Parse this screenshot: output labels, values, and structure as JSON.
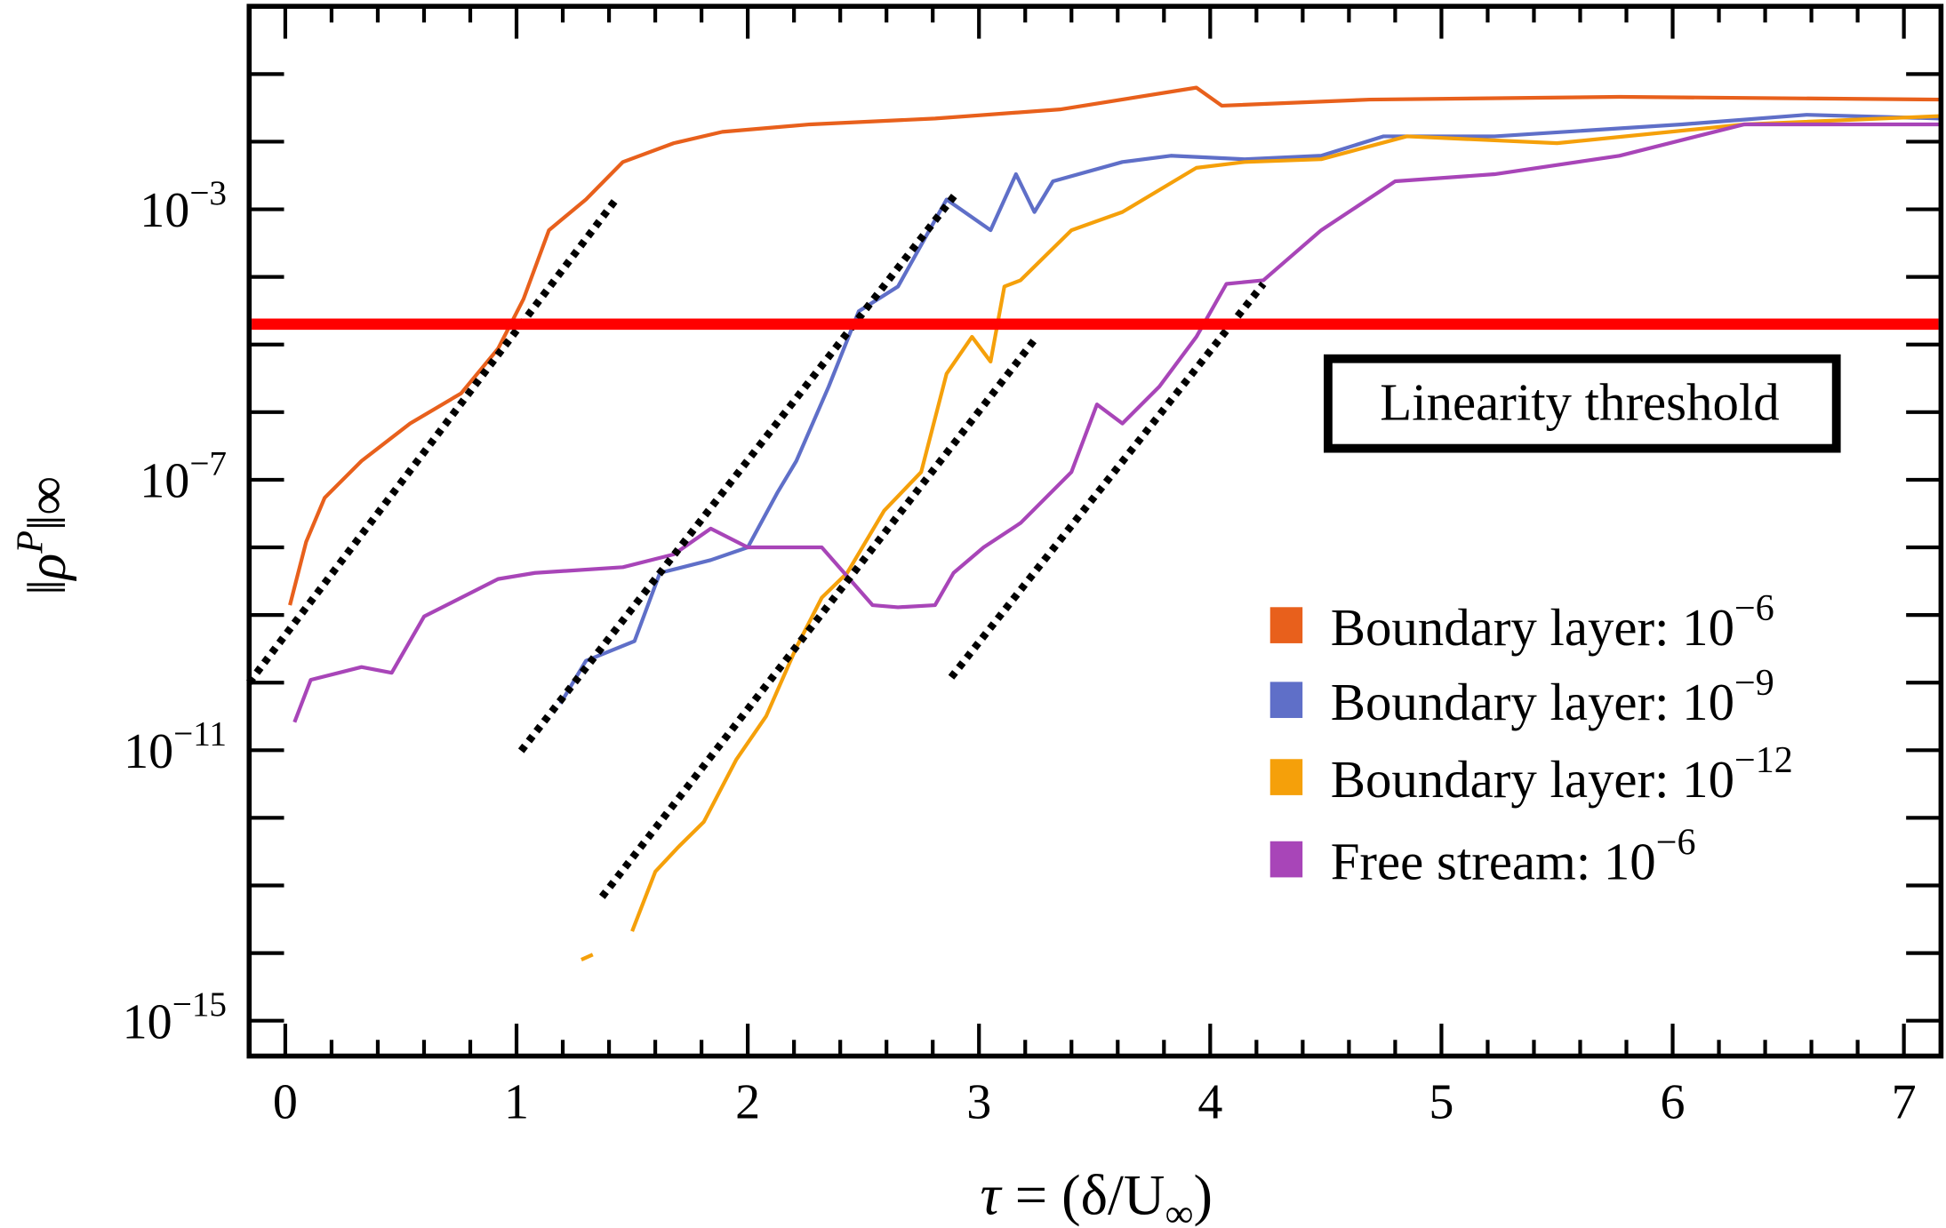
{
  "chart_data": {
    "type": "line",
    "xlabel": "τ = (δ/U∞)",
    "ylabel": "‖ρP‖∞",
    "ylabel_parts": {
      "pre": "‖ρ",
      "sup": "P",
      "post": "‖∞"
    },
    "xlabel_parts": {
      "tau": "τ",
      "rest": " = (δ/U",
      "sub": "∞",
      "close": ")"
    },
    "xlim": [
      -0.156,
      7.16
    ],
    "ylim": [
      3e-16,
      1
    ],
    "yscale": "log",
    "grid": false,
    "legend_position": "right",
    "x_ticks": [
      "0",
      "1",
      "2",
      "3",
      "4",
      "5",
      "6",
      "7"
    ],
    "y_ticks": [
      {
        "base": "10",
        "exp": "−3",
        "value": 0.001
      },
      {
        "base": "10",
        "exp": "−7",
        "value": 1e-07
      },
      {
        "base": "10",
        "exp": "−11",
        "value": 1e-11
      },
      {
        "base": "10",
        "exp": "−15",
        "value": 1e-15
      }
    ],
    "threshold": {
      "value": 2e-05,
      "label": "Linearity threshold",
      "color": "#ff0000"
    },
    "series": [
      {
        "name": "Boundary layer: 10−6",
        "label_base": "Boundary layer: 10",
        "label_exp": "−6",
        "color": "#e8601c",
        "points": [
          [
            0.02,
            1.4e-09
          ],
          [
            0.09,
            1.2e-08
          ],
          [
            0.17,
            5.4e-08
          ],
          [
            0.33,
            1.9e-07
          ],
          [
            0.54,
            6.8e-07
          ],
          [
            0.76,
            1.9e-06
          ],
          [
            0.92,
            8.7e-06
          ],
          [
            1.03,
            4.7e-05
          ],
          [
            1.14,
            0.00049
          ],
          [
            1.3,
            0.0014
          ],
          [
            1.46,
            0.005
          ],
          [
            1.68,
            0.0095
          ],
          [
            1.89,
            0.014
          ],
          [
            2.27,
            0.018
          ],
          [
            2.81,
            0.022
          ],
          [
            3.35,
            0.03
          ],
          [
            3.94,
            0.063
          ],
          [
            4.05,
            0.034
          ],
          [
            4.69,
            0.042
          ],
          [
            5.77,
            0.046
          ],
          [
            7.16,
            0.042
          ]
        ]
      },
      {
        "name": "Boundary layer: 10−9",
        "label_base": "Boundary layer: 10",
        "label_exp": "−9",
        "color": "#5f6fc8",
        "points": [
          [
            1.19,
            4.9e-11
          ],
          [
            1.3,
            2.1e-10
          ],
          [
            1.51,
            4.1e-10
          ],
          [
            1.62,
            4.2e-09
          ],
          [
            1.84,
            6.5e-09
          ],
          [
            2.0,
            1e-08
          ],
          [
            2.13,
            6.6e-08
          ],
          [
            2.21,
            1.9e-07
          ],
          [
            2.35,
            2.4e-06
          ],
          [
            2.48,
            3.1e-05
          ],
          [
            2.65,
            7.2e-05
          ],
          [
            2.86,
            0.0014
          ],
          [
            3.05,
            0.00049
          ],
          [
            3.16,
            0.0033
          ],
          [
            3.24,
            0.00091
          ],
          [
            3.32,
            0.0026
          ],
          [
            3.62,
            0.005
          ],
          [
            3.83,
            0.0062
          ],
          [
            4.15,
            0.0055
          ],
          [
            4.48,
            0.0062
          ],
          [
            4.75,
            0.012
          ],
          [
            5.23,
            0.012
          ],
          [
            6.04,
            0.018
          ],
          [
            6.58,
            0.025
          ],
          [
            7.16,
            0.022
          ]
        ]
      },
      {
        "name": "Boundary layer: 10−12",
        "label_base": "Boundary layer: 10",
        "label_exp": "−12",
        "color": "#f5a00a",
        "points": [
          [
            1.28,
            8e-15
          ],
          [
            1.33,
            9.5e-15
          ],
          null,
          [
            1.5,
            2.1e-14
          ],
          [
            1.6,
            1.6e-13
          ],
          [
            1.7,
            3.7e-13
          ],
          [
            1.81,
            8.7e-13
          ],
          [
            1.95,
            7.2e-12
          ],
          [
            2.08,
            3.2e-11
          ],
          [
            2.21,
            3.3e-10
          ],
          [
            2.32,
            1.8e-09
          ],
          [
            2.43,
            4.2e-09
          ],
          [
            2.59,
            3.5e-08
          ],
          [
            2.75,
            1.3e-07
          ],
          [
            2.86,
            3.7e-06
          ],
          [
            2.97,
            1.3e-05
          ],
          [
            3.05,
            5.6e-06
          ],
          [
            3.11,
            7.2e-05
          ],
          [
            3.18,
            8.9e-05
          ],
          [
            3.4,
            0.00049
          ],
          [
            3.62,
            0.00091
          ],
          [
            3.94,
            0.0041
          ],
          [
            4.15,
            0.005
          ],
          [
            4.48,
            0.0055
          ],
          [
            4.85,
            0.012
          ],
          [
            5.5,
            0.0095
          ],
          [
            6.31,
            0.018
          ],
          [
            7.16,
            0.024
          ]
        ]
      },
      {
        "name": "Free stream: 10−6",
        "label_base": "Free stream: 10",
        "label_exp": "−6",
        "color": "#a845b8",
        "points": [
          [
            0.04,
            2.6e-11
          ],
          [
            0.11,
            1.1e-10
          ],
          [
            0.33,
            1.7e-10
          ],
          [
            0.46,
            1.4e-10
          ],
          [
            0.6,
            9.5e-10
          ],
          [
            0.92,
            3.4e-09
          ],
          [
            1.08,
            4.2e-09
          ],
          [
            1.46,
            5.1e-09
          ],
          [
            1.68,
            7.9e-09
          ],
          [
            1.84,
            1.9e-08
          ],
          [
            2.0,
            1e-08
          ],
          [
            2.32,
            1e-08
          ],
          [
            2.54,
            1.4e-09
          ],
          [
            2.65,
            1.3e-09
          ],
          [
            2.81,
            1.4e-09
          ],
          [
            2.89,
            4.2e-09
          ],
          [
            3.02,
            1e-08
          ],
          [
            3.18,
            2.3e-08
          ],
          [
            3.4,
            1.3e-07
          ],
          [
            3.51,
            1.3e-06
          ],
          [
            3.62,
            6.8e-07
          ],
          [
            3.78,
            2.4e-06
          ],
          [
            3.94,
            1.3e-05
          ],
          [
            4.07,
            7.9e-05
          ],
          [
            4.23,
            8.9e-05
          ],
          [
            4.48,
            0.00049
          ],
          [
            4.8,
            0.0026
          ],
          [
            5.23,
            0.0033
          ],
          [
            5.77,
            0.0062
          ],
          [
            6.31,
            0.018
          ],
          [
            7.16,
            0.018
          ]
        ]
      }
    ],
    "reference_lines": [
      [
        [
          -0.156,
          1e-10
        ],
        [
          1.43,
          0.0014
        ]
      ],
      [
        [
          1.02,
          9.8e-12
        ],
        [
          2.9,
          0.0017
        ]
      ],
      [
        [
          1.37,
          6.8e-14
        ],
        [
          3.25,
          1.3e-05
        ]
      ],
      [
        [
          2.88,
          1.2e-10
        ],
        [
          4.23,
          7.9e-05
        ]
      ]
    ]
  }
}
